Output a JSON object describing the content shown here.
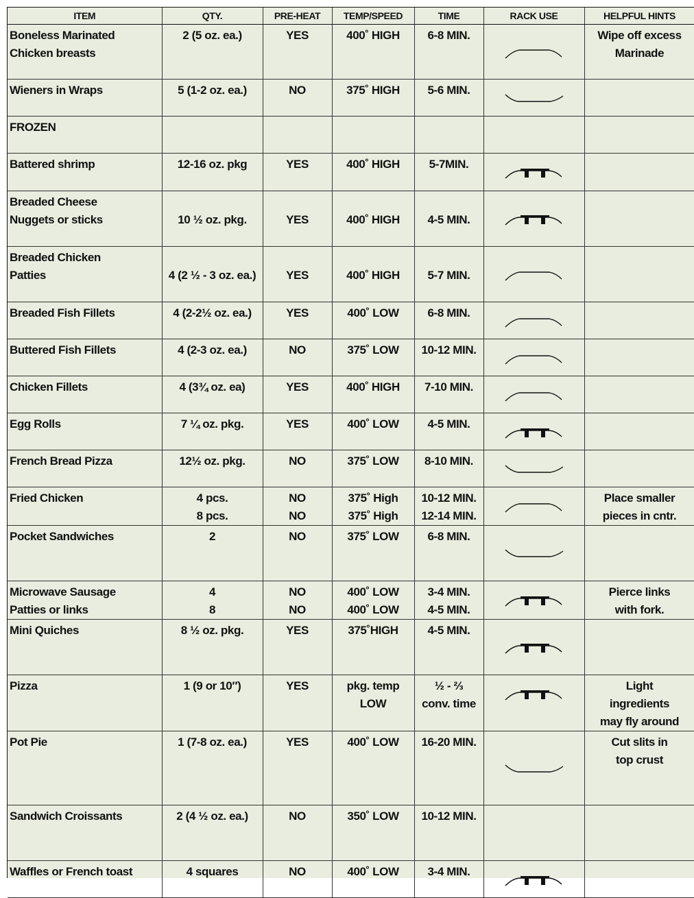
{
  "headers": [
    "ITEM",
    "QTY.",
    "PRE-HEAT",
    "TEMP/SPEED",
    "TIME",
    "RACK USE",
    "HELPFUL HINTS"
  ],
  "rows": [
    {
      "item": [
        "Boneless Marinated",
        "Chicken breasts"
      ],
      "qty": [
        "2 (5 oz. ea.)"
      ],
      "preheat": [
        "YES"
      ],
      "temp": [
        "400˚ HIGH"
      ],
      "time": [
        "6-8 MIN."
      ],
      "rack": "high-rack",
      "hint": [
        "Wipe off excess",
        "Marinade"
      ]
    },
    {
      "item": [
        "Wieners in Wraps"
      ],
      "qty": [
        "5 (1-2 oz. ea.)"
      ],
      "preheat": [
        "NO"
      ],
      "temp": [
        "375˚ HIGH"
      ],
      "time": [
        "5-6 MIN."
      ],
      "rack": "low-rack",
      "hint": []
    },
    {
      "item": [
        "FROZEN"
      ],
      "qty": [],
      "preheat": [],
      "temp": [],
      "time": [],
      "rack": "",
      "hint": []
    },
    {
      "item": [
        "Battered shrimp"
      ],
      "qty": [
        "12-16 oz. pkg"
      ],
      "preheat": [
        "YES"
      ],
      "temp": [
        "400˚ HIGH"
      ],
      "time": [
        "5-7MIN."
      ],
      "rack": "pan-rack",
      "hint": []
    },
    {
      "item": [
        "Breaded Cheese",
        "Nuggets or sticks"
      ],
      "qty": [
        "10 ½ oz. pkg."
      ],
      "preheat": [
        "YES"
      ],
      "temp": [
        "400˚ HIGH"
      ],
      "time": [
        "4-5 MIN."
      ],
      "rack": "pan-rack",
      "hint": []
    },
    {
      "item": [
        "Breaded Chicken",
        "Patties"
      ],
      "qty": [
        "4 (2 ½ - 3 oz. ea.)"
      ],
      "preheat": [
        "YES"
      ],
      "temp": [
        "400˚ HIGH"
      ],
      "time": [
        "5-7 MIN."
      ],
      "rack": "high-rack",
      "hint": []
    },
    {
      "item": [
        "Breaded Fish Fillets"
      ],
      "qty": [
        "4 (2-2½ oz. ea.)"
      ],
      "preheat": [
        "YES"
      ],
      "temp": [
        "400˚ LOW"
      ],
      "time": [
        "6-8 MIN."
      ],
      "rack": "high-rack",
      "hint": []
    },
    {
      "item": [
        "Buttered Fish Fillets"
      ],
      "qty": [
        "4 (2-3 oz. ea.)"
      ],
      "preheat": [
        "NO"
      ],
      "temp": [
        "375˚ LOW"
      ],
      "time": [
        "10-12 MIN."
      ],
      "rack": "high-rack",
      "hint": []
    },
    {
      "item": [
        "Chicken Fillets"
      ],
      "qty": [
        "4 (3¾ oz. ea)"
      ],
      "preheat": [
        "YES"
      ],
      "temp": [
        "400˚ HIGH"
      ],
      "time": [
        "7-10 MIN."
      ],
      "rack": "high-rack",
      "hint": []
    },
    {
      "item": [
        "Egg Rolls"
      ],
      "qty": [
        "7 ¼ oz. pkg."
      ],
      "preheat": [
        "YES"
      ],
      "temp": [
        "400˚ LOW"
      ],
      "time": [
        "4-5 MIN."
      ],
      "rack": "pan-rack",
      "hint": []
    },
    {
      "item": [
        "French Bread Pizza"
      ],
      "qty": [
        "12½ oz. pkg."
      ],
      "preheat": [
        "NO"
      ],
      "temp": [
        "375˚ LOW"
      ],
      "time": [
        "8-10 MIN."
      ],
      "rack": "low-rack",
      "hint": []
    },
    {
      "item": [
        "Fried Chicken"
      ],
      "qty": [
        "4 pcs.",
        "8 pcs."
      ],
      "preheat": [
        "NO",
        "NO"
      ],
      "temp": [
        "375˚ High",
        "375˚ High"
      ],
      "time": [
        "10-12 MIN.",
        "12-14 MIN."
      ],
      "rack": "high-rack",
      "hint": [
        "Place smaller",
        "pieces in cntr."
      ]
    },
    {
      "item": [
        "Pocket Sandwiches"
      ],
      "qty": [
        "2"
      ],
      "preheat": [
        "NO"
      ],
      "temp": [
        "375˚ LOW"
      ],
      "time": [
        "6-8 MIN."
      ],
      "rack": "low-rack",
      "hint": []
    },
    {
      "item": [
        "Microwave Sausage",
        "Patties or links"
      ],
      "qty": [
        "4",
        "8"
      ],
      "preheat": [
        "NO",
        "NO"
      ],
      "temp": [
        "400˚ LOW",
        "400˚ LOW"
      ],
      "time": [
        "3-4 MIN.",
        "4-5 MIN."
      ],
      "rack": "pan-rack",
      "hint": [
        "Pierce links",
        "with fork."
      ]
    },
    {
      "item": [
        "Mini Quiches"
      ],
      "qty": [
        "8 ½ oz.  pkg."
      ],
      "preheat": [
        "YES"
      ],
      "temp": [
        "375˚HIGH"
      ],
      "time": [
        "4-5 MIN."
      ],
      "rack": "pan-rack",
      "hint": []
    },
    {
      "item": [
        "Pizza"
      ],
      "qty": [
        "1 (9 or 10″)"
      ],
      "preheat": [
        "YES"
      ],
      "temp": [
        "pkg. temp",
        "LOW"
      ],
      "time": [
        "½ - ⅔",
        "conv. time"
      ],
      "rack": "pan-rack",
      "hint": [
        "Light",
        "ingredients",
        "may fly around"
      ]
    },
    {
      "item": [
        "Pot Pie"
      ],
      "qty": [
        "1 (7-8 oz. ea.)"
      ],
      "preheat": [
        "YES"
      ],
      "temp": [
        "400˚ LOW"
      ],
      "time": [
        "16-20 MIN."
      ],
      "rack": "low-rack",
      "hint": [
        "Cut slits in",
        "top crust"
      ]
    },
    {
      "item": [
        "Sandwich Croissants"
      ],
      "qty": [
        "2 (4 ½ oz. ea.)"
      ],
      "preheat": [
        "NO"
      ],
      "temp": [
        "350˚ LOW"
      ],
      "time": [
        "10-12 MIN."
      ],
      "rack": "",
      "hint": []
    },
    {
      "item": [
        "Waffles or French toast"
      ],
      "qty": [
        "4 squares"
      ],
      "preheat": [
        "NO"
      ],
      "temp": [
        "400˚ LOW"
      ],
      "time": [
        "3-4 MIN."
      ],
      "rack": "pan-rack",
      "hint": []
    }
  ]
}
